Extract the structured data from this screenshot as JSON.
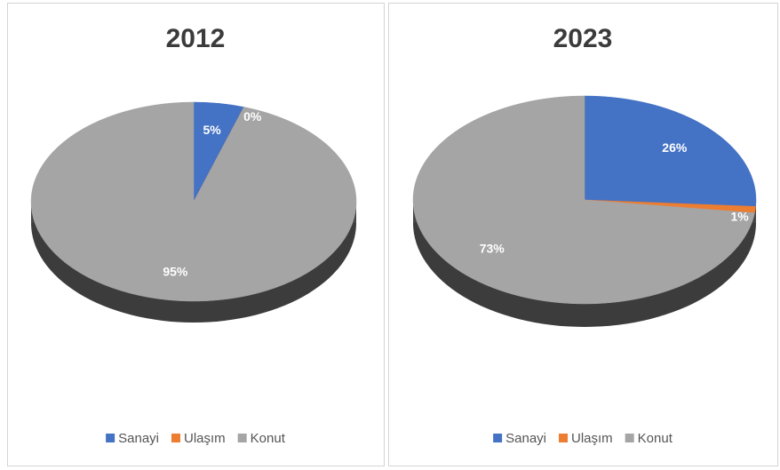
{
  "chart_data": [
    {
      "type": "pie",
      "title": "2012",
      "categories": [
        "Sanayi",
        "Ulaşım",
        "Konut"
      ],
      "values": [
        5,
        0,
        95
      ],
      "value_labels": [
        "5%",
        "0%",
        "95%"
      ],
      "colors": [
        "#4472c4",
        "#ed7d31",
        "#a5a5a5"
      ]
    },
    {
      "type": "pie",
      "title": "2023",
      "categories": [
        "Sanayi",
        "Ulaşım",
        "Konut"
      ],
      "values": [
        26,
        1,
        73
      ],
      "value_labels": [
        "26%",
        "1%",
        "73%"
      ],
      "colors": [
        "#4472c4",
        "#ed7d31",
        "#a5a5a5"
      ]
    }
  ]
}
